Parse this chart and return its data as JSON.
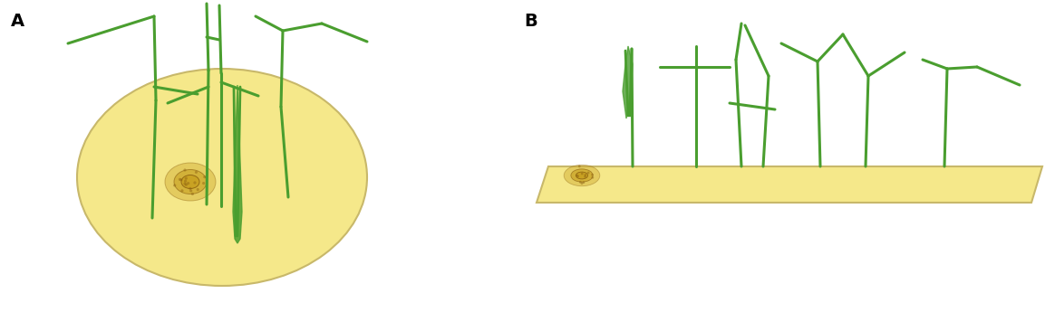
{
  "fig_width": 11.64,
  "fig_height": 3.56,
  "dpi": 100,
  "background_color": "#ffffff",
  "label_A": "A",
  "label_B": "B",
  "label_fontsize": 14,
  "label_fontweight": "bold",
  "green_color": "#4a9e2f",
  "green_lw": 2.2,
  "ellipse_color": "#f5e88a",
  "ellipse_edge": "#c8b86a",
  "rect_color": "#f5e88a",
  "rect_edge": "#c8b86a",
  "pathogen_color": "#c8a020",
  "pathogen_color2": "#8b6010"
}
